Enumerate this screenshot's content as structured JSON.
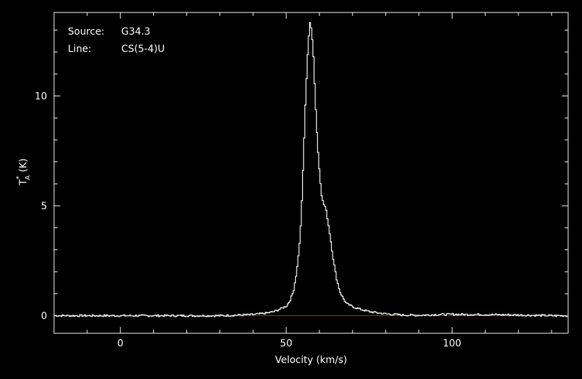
{
  "chart_data": {
    "type": "line",
    "source_label": "Source:",
    "source_value": "G34.3",
    "line_label": "Line:",
    "line_value": "CS(5-4)U",
    "xlabel": "Velocity (km/s)",
    "ylabel": "T*A (K)",
    "xlim": [
      -20,
      135
    ],
    "ylim": [
      -0.8,
      13.8
    ],
    "x_ticks": [
      0,
      50,
      100
    ],
    "y_ticks": [
      0,
      5,
      10
    ],
    "baseline": 0,
    "grid": false,
    "colors": {
      "background": "#000000",
      "spectrum": "#ffffff",
      "baseline": "#cc2222",
      "axes": "#ffffff"
    },
    "series": [
      {
        "x": [
          -20,
          -10,
          0,
          10,
          20,
          30,
          40,
          44,
          46,
          48,
          50,
          51,
          52,
          53,
          54,
          54.5,
          55,
          55.5,
          56,
          56.5,
          57,
          57.5,
          58,
          58.5,
          59,
          59.5,
          60,
          60.5,
          61,
          61.5,
          62,
          63,
          64,
          65,
          66,
          67,
          68,
          70,
          72,
          75,
          80,
          85,
          90,
          95,
          100,
          110,
          120,
          130,
          135
        ],
        "y": [
          0.0,
          0.0,
          0.0,
          0.0,
          0.0,
          0.0,
          0.05,
          0.12,
          0.18,
          0.3,
          0.45,
          0.7,
          1.1,
          2.0,
          3.5,
          5.0,
          7.0,
          9.2,
          11.0,
          12.5,
          13.3,
          13.0,
          12.0,
          10.2,
          8.6,
          7.3,
          6.3,
          5.5,
          5.1,
          5.0,
          4.7,
          3.7,
          2.6,
          1.7,
          1.1,
          0.8,
          0.55,
          0.4,
          0.3,
          0.18,
          0.08,
          0.03,
          0.02,
          0.05,
          0.06,
          0.05,
          0.03,
          0.0,
          0.0
        ]
      }
    ]
  }
}
